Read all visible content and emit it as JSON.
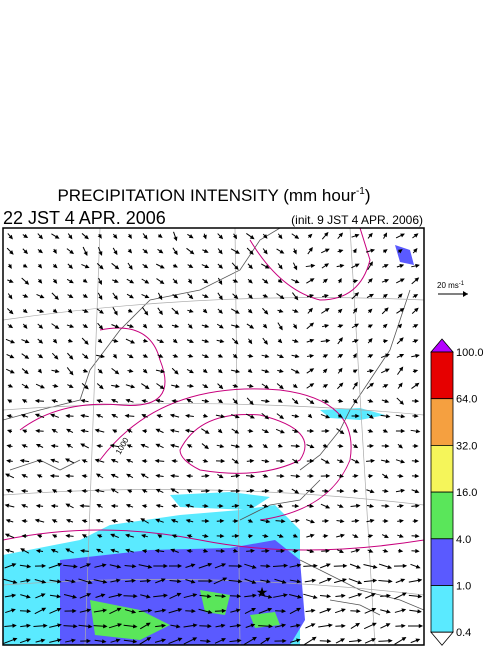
{
  "header": {
    "title": "PRECIPITATION INTENSITY (mm hour",
    "title_sup": "-1",
    "title_end": ")",
    "valid_time": "22 JST 4 APR. 2006",
    "init_time": "(init. 9 JST 4 APR. 2006)"
  },
  "vector_scale": {
    "label": "20 ms",
    "label_sup": "-1"
  },
  "contour_labels": [
    "1000"
  ],
  "legend": {
    "levels": [
      "100.0",
      "64.0",
      "32.0",
      "16.0",
      "4.0",
      "1.0",
      "0.4"
    ],
    "colors": [
      "#b400ff",
      "#e60000",
      "#f5a040",
      "#f5f55a",
      "#5ae65a",
      "#5a5aff",
      "#5aeaff",
      "#ffffff"
    ]
  }
}
